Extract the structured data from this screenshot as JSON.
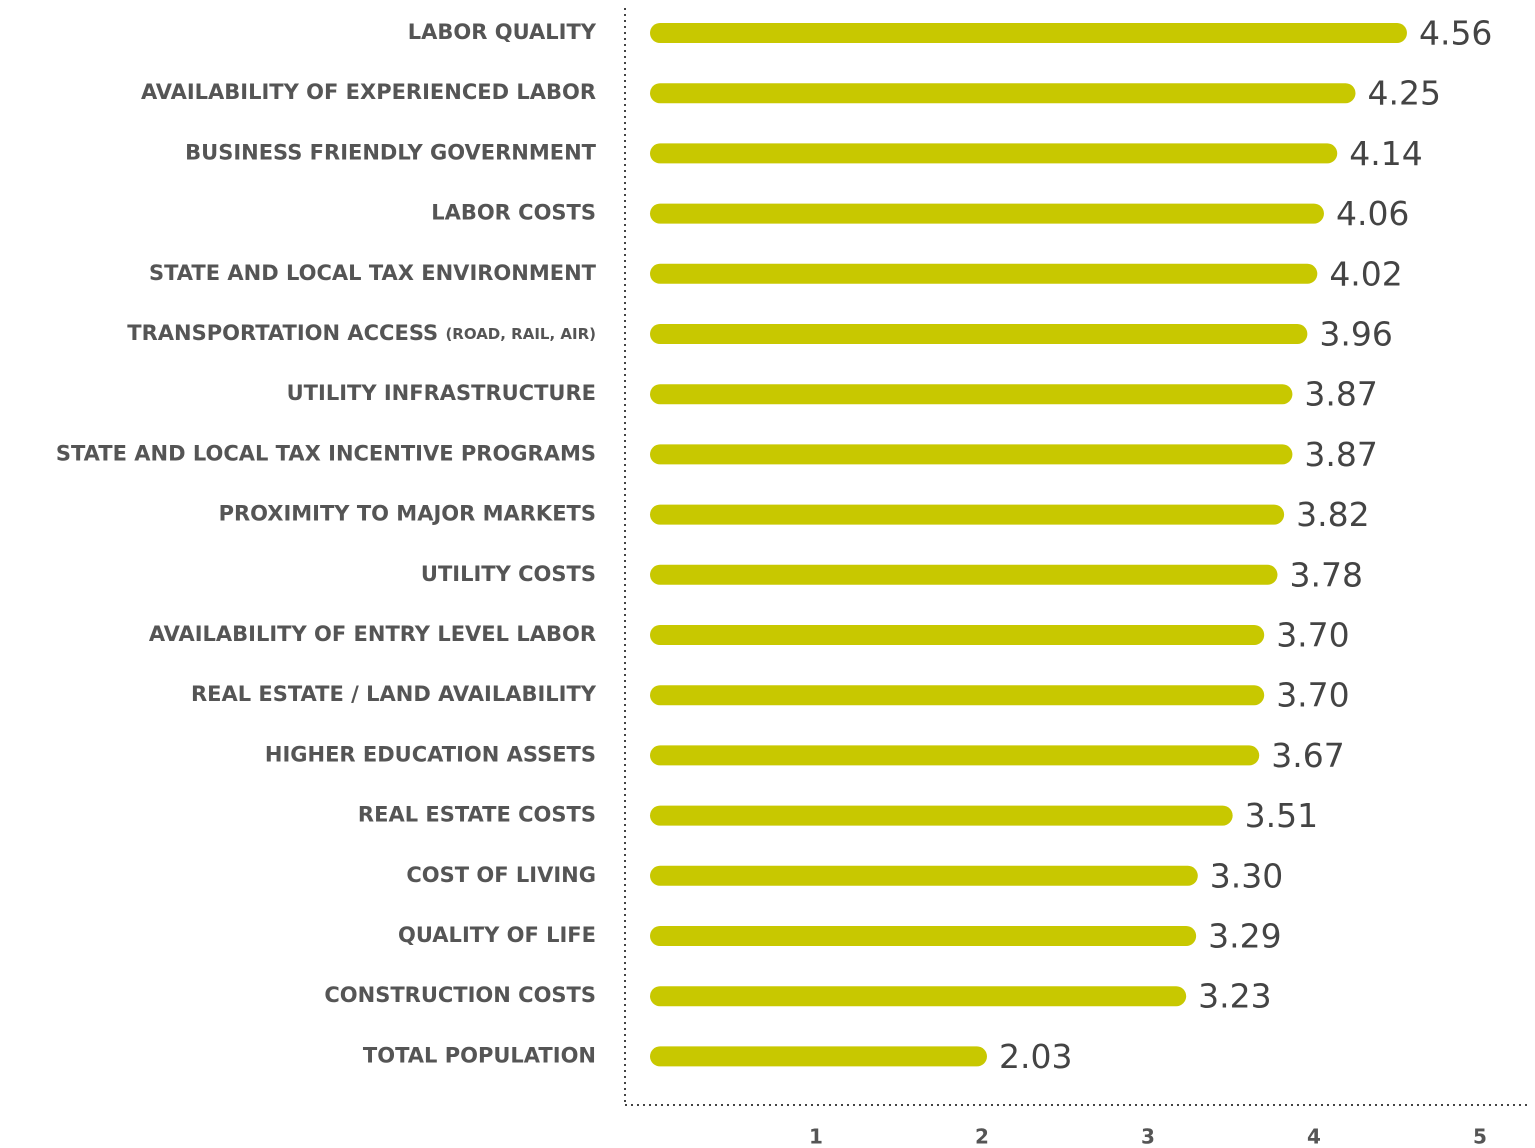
{
  "chart_data": {
    "type": "barh",
    "categories": [
      "LABOR QUALITY",
      "AVAILABILITY OF EXPERIENCED LABOR",
      "BUSINESS FRIENDLY GOVERNMENT",
      "LABOR COSTS",
      "STATE AND LOCAL TAX ENVIRONMENT",
      "TRANSPORTATION ACCESS (ROAD, RAIL, AIR)",
      "UTILITY INFRASTRUCTURE",
      "STATE AND LOCAL TAX INCENTIVE PROGRAMS",
      "PROXIMITY TO MAJOR MARKETS",
      "UTILITY COSTS",
      "AVAILABILITY OF ENTRY LEVEL LABOR",
      "REAL ESTATE / LAND AVAILABILITY",
      "HIGHER EDUCATION ASSETS",
      "REAL ESTATE COSTS",
      "COST OF LIVING",
      "QUALITY OF LIFE",
      "CONSTRUCTION COSTS",
      "TOTAL POPULATION"
    ],
    "values": [
      4.56,
      4.25,
      4.14,
      4.06,
      4.02,
      3.96,
      3.87,
      3.87,
      3.82,
      3.78,
      3.7,
      3.7,
      3.67,
      3.51,
      3.3,
      3.29,
      3.23,
      2.03
    ],
    "value_labels": [
      "4.56",
      "4.25",
      "4.14",
      "4.06",
      "4.02",
      "3.96",
      "3.87",
      "3.87",
      "3.82",
      "3.78",
      "3.70",
      "3.70",
      "3.67",
      "3.51",
      "3.30",
      "3.29",
      "3.23",
      "2.03"
    ],
    "color": "#c8c800",
    "xlim": [
      0,
      5
    ],
    "xticks": [
      1,
      2,
      3,
      4,
      5
    ],
    "grid": false
  }
}
